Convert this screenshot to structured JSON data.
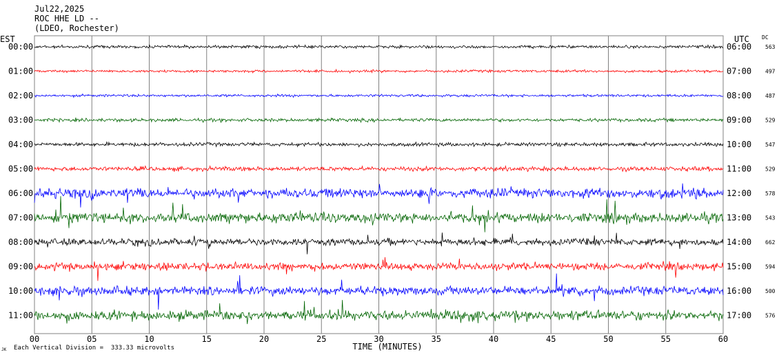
{
  "header": {
    "date": "Jul22,2025",
    "station": "ROC HHE LD --",
    "network": "(LDEO, Rochester)"
  },
  "left_timezone": "EST",
  "right_timezone": "UTC",
  "dc_header": "DC",
  "footer": {
    "scale_note": "Each Vertical Division =  333.33 microvolts",
    "corner_mark": "JK"
  },
  "chart_data": {
    "type": "line",
    "title": "",
    "xlabel": "TIME (MINUTES)",
    "ylabel": "",
    "xlim": [
      0,
      60
    ],
    "x_ticks": [
      "00",
      "05",
      "10",
      "15",
      "20",
      "25",
      "30",
      "35",
      "40",
      "45",
      "50",
      "55",
      "60"
    ],
    "grid": "vertical lines every 5 minutes",
    "rows": [
      {
        "est": "00:00",
        "utc": "06:00",
        "dc": "563",
        "color": "#000000",
        "activity": 0.8
      },
      {
        "est": "01:00",
        "utc": "07:00",
        "dc": "497",
        "color": "#ff0000",
        "activity": 0.7
      },
      {
        "est": "02:00",
        "utc": "08:00",
        "dc": "487",
        "color": "#0000ff",
        "activity": 0.7
      },
      {
        "est": "03:00",
        "utc": "09:00",
        "dc": "529",
        "color": "#006400",
        "activity": 0.9
      },
      {
        "est": "04:00",
        "utc": "10:00",
        "dc": "547",
        "color": "#000000",
        "activity": 1.0
      },
      {
        "est": "05:00",
        "utc": "11:00",
        "dc": "529",
        "color": "#ff0000",
        "activity": 1.2
      },
      {
        "est": "06:00",
        "utc": "12:00",
        "dc": "578",
        "color": "#0000ff",
        "activity": 2.6
      },
      {
        "est": "07:00",
        "utc": "13:00",
        "dc": "543",
        "color": "#006400",
        "activity": 2.6
      },
      {
        "est": "08:00",
        "utc": "14:00",
        "dc": "662",
        "color": "#000000",
        "activity": 1.9
      },
      {
        "est": "09:00",
        "utc": "15:00",
        "dc": "594",
        "color": "#ff0000",
        "activity": 2.0
      },
      {
        "est": "10:00",
        "utc": "16:00",
        "dc": "500",
        "color": "#0000ff",
        "activity": 2.4
      },
      {
        "est": "11:00",
        "utc": "17:00",
        "dc": "576",
        "color": "#006400",
        "activity": 2.6
      }
    ]
  }
}
